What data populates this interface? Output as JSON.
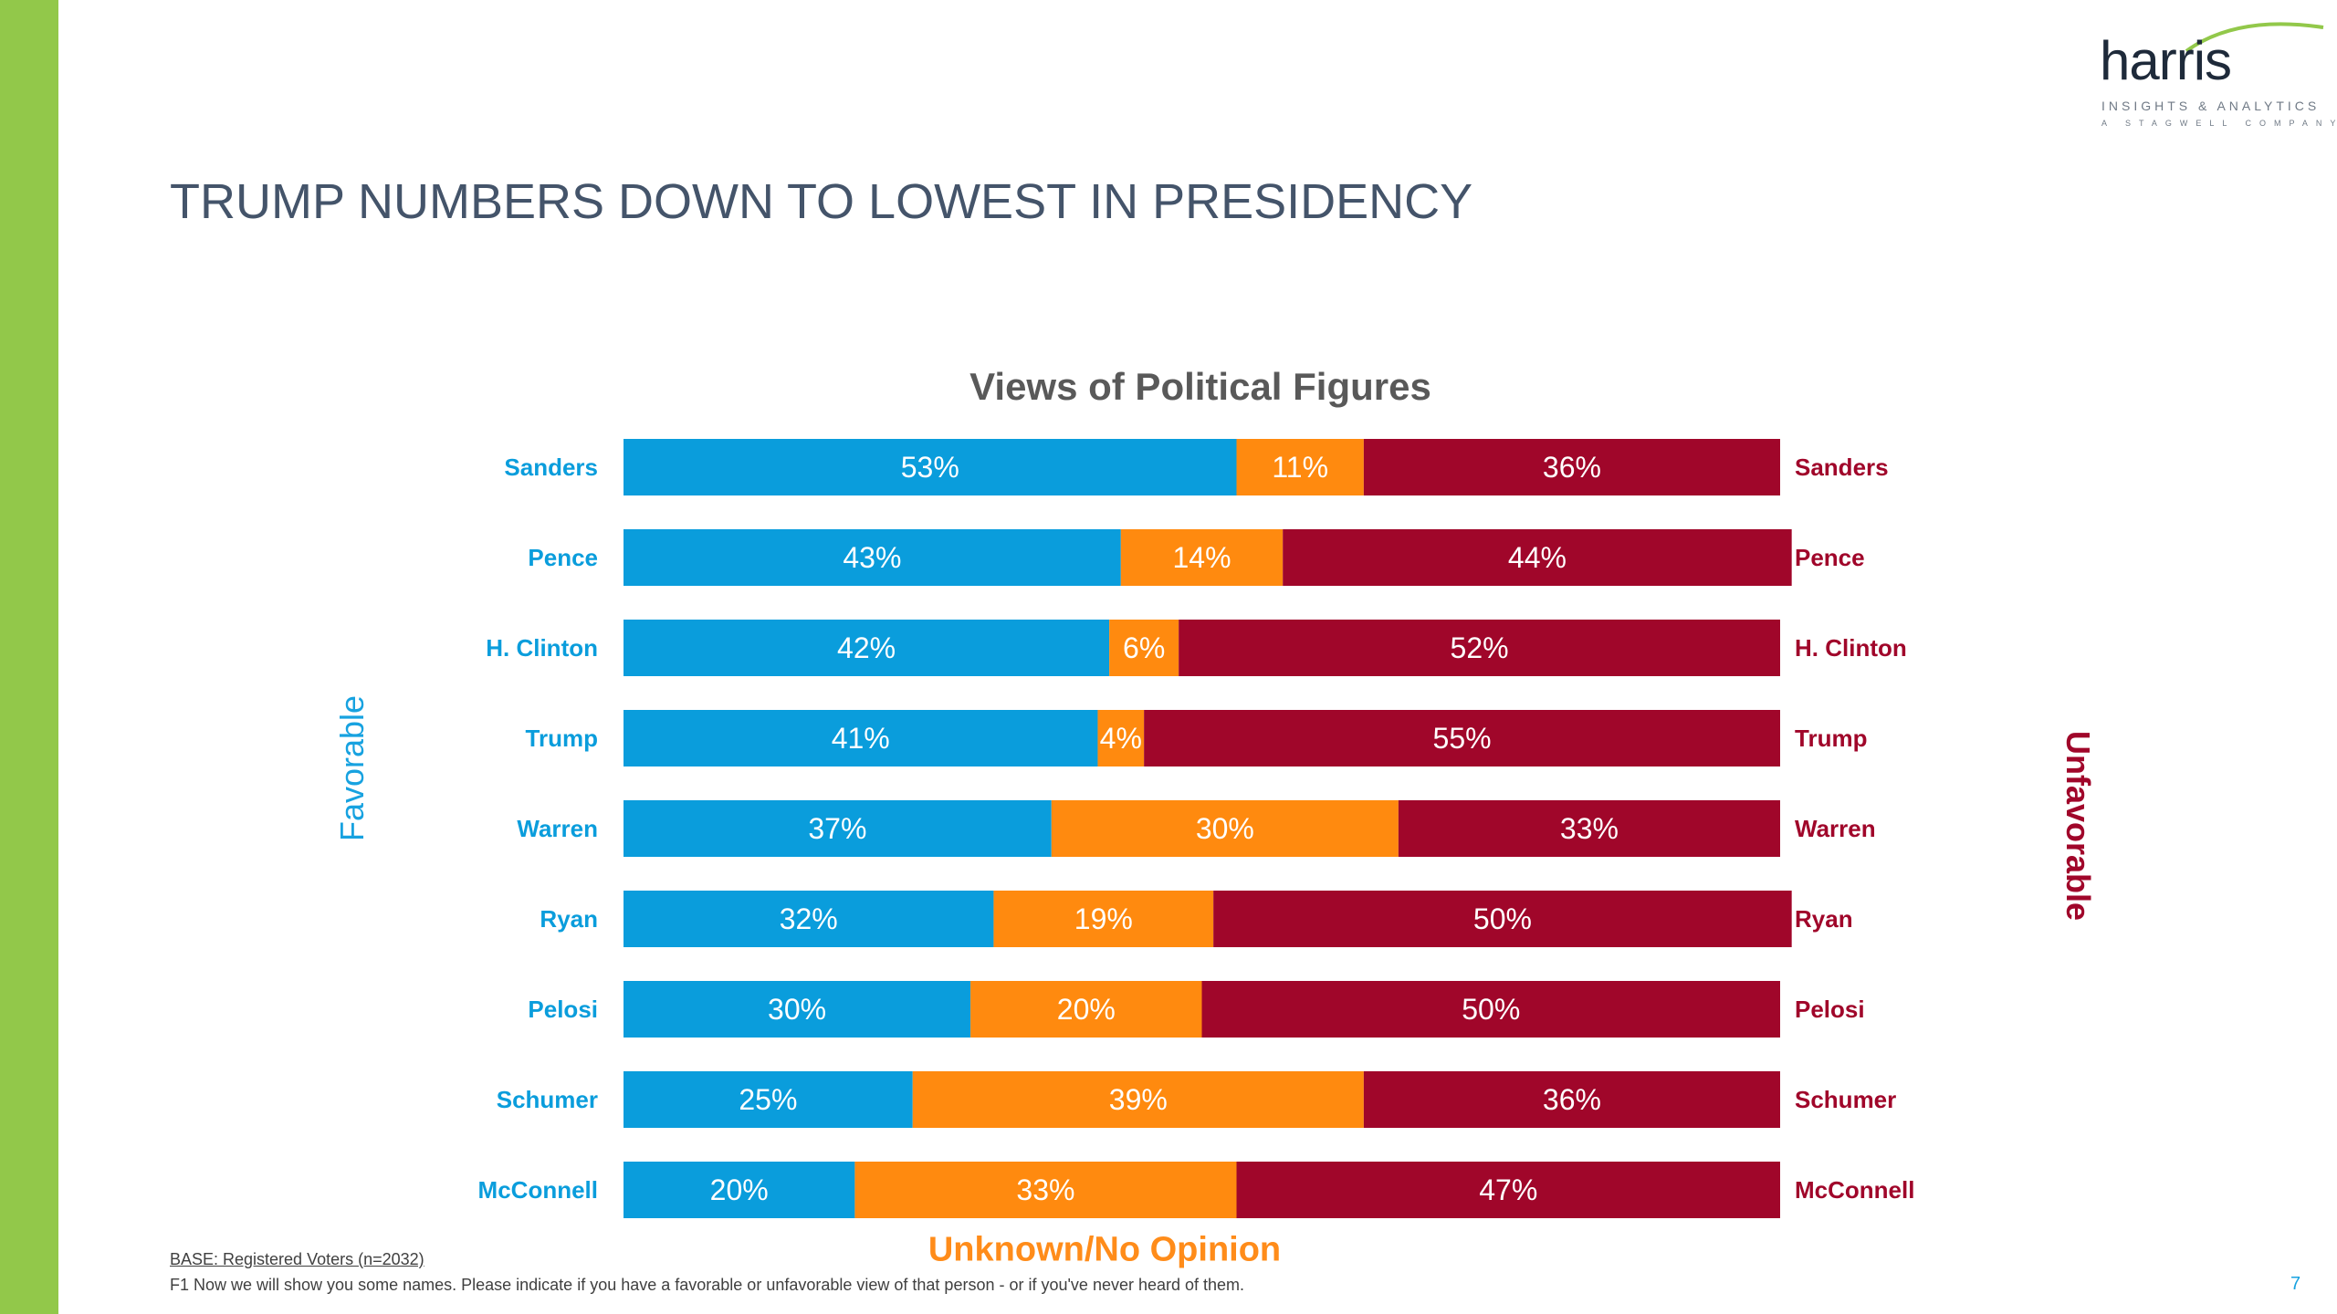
{
  "logo": {
    "word": "harris",
    "tagline": "INSIGHTS & ANALYTICS",
    "subtagline": "A STAGWELL COMPANY"
  },
  "page_title": "TRUMP NUMBERS DOWN TO LOWEST IN PRESIDENCY",
  "page_number": "7",
  "footnotes": {
    "base": "BASE: Registered Voters (n=2032)",
    "question": "F1 Now we will show you some names. Please indicate if you have a favorable or unfavorable view of that person - or if you've never heard of them."
  },
  "colors": {
    "favorable": "#0a9ddc",
    "unknown": "#ff8a0f",
    "unfavorable": "#a0062a",
    "accent_green": "#92c84a"
  },
  "chart_data": {
    "type": "bar",
    "orientation": "horizontal-stacked-100",
    "title": "Views of Political Figures",
    "left_axis_label": "Favorable",
    "right_axis_label": "Unfavorable",
    "bottom_label": "Unknown/No Opinion",
    "categories": [
      "Sanders",
      "Pence",
      "H. Clinton",
      "Trump",
      "Warren",
      "Ryan",
      "Pelosi",
      "Schumer",
      "McConnell"
    ],
    "series": [
      {
        "name": "Favorable",
        "values": [
          53,
          43,
          42,
          41,
          37,
          32,
          30,
          25,
          20
        ]
      },
      {
        "name": "Unknown/No Opinion",
        "values": [
          11,
          14,
          6,
          4,
          30,
          19,
          20,
          39,
          33
        ]
      },
      {
        "name": "Unfavorable",
        "values": [
          36,
          44,
          52,
          55,
          33,
          50,
          50,
          36,
          47
        ]
      }
    ],
    "value_suffix": "%",
    "xlim": [
      0,
      100
    ]
  }
}
